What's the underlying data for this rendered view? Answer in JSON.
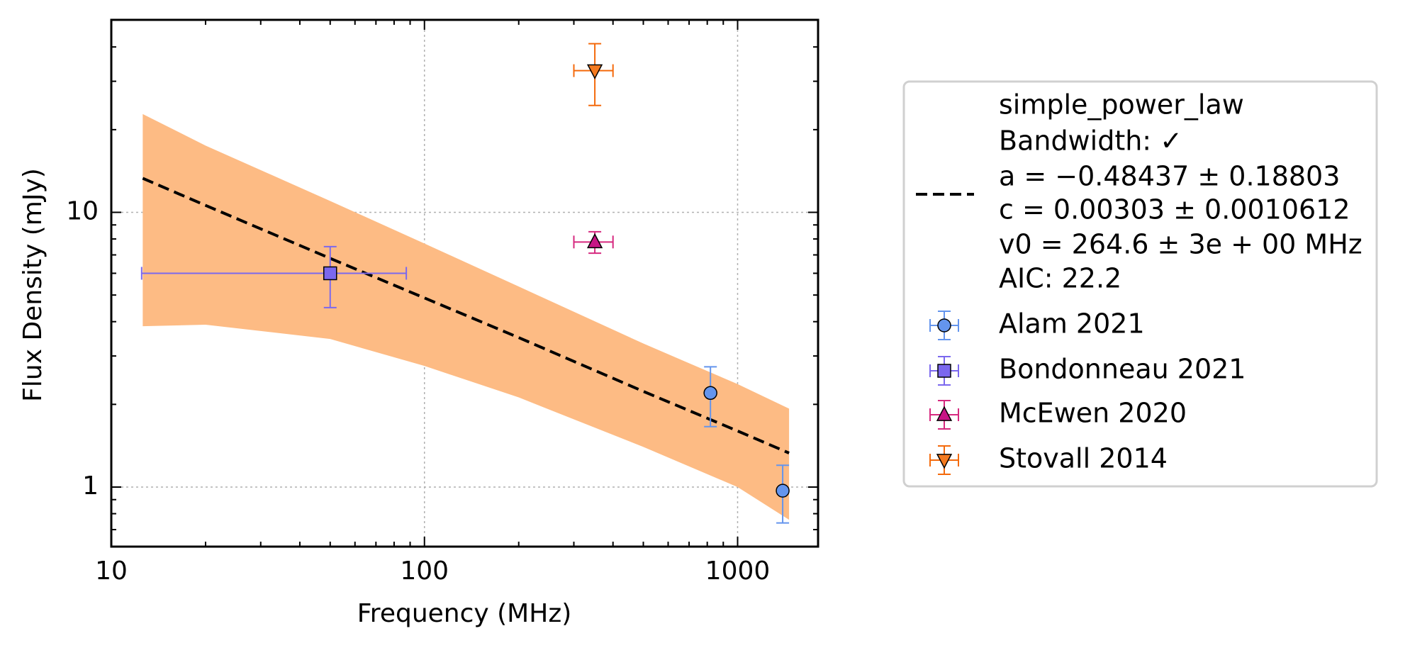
{
  "chart_data": {
    "type": "scatter",
    "xlabel": "Frequency (MHz)",
    "ylabel": "Flux Density (mJy)",
    "xscale": "log",
    "yscale": "log",
    "xlim": [
      10,
      1807
    ],
    "ylim": [
      0.607,
      50.2
    ],
    "xticks": [
      10,
      100,
      1000
    ],
    "yticks": [
      1,
      10
    ],
    "xticks_minor": [
      20,
      30,
      40,
      50,
      60,
      70,
      80,
      90,
      200,
      300,
      400,
      500,
      600,
      700,
      800,
      900
    ],
    "yticks_minor": [
      0.7,
      0.8,
      0.9,
      2,
      3,
      4,
      5,
      6,
      7,
      8,
      9,
      20,
      30,
      40
    ],
    "grid": true,
    "legend": "outside right",
    "fit": {
      "label": [
        "simple_power_law",
        "Bandwidth: ✓",
        "a = −0.48437 ± 0.18803",
        "c = 0.00303 ± 0.0010612",
        "v0 = 264.6 ± 3e + 00 MHz",
        "AIC: 22.2"
      ],
      "color": "#000000",
      "band_color": "#fdbb84",
      "x": [
        12.6,
        20,
        50,
        100,
        200,
        500,
        1000,
        1460
      ],
      "y": [
        13.3,
        10.6,
        6.8,
        4.88,
        3.5,
        2.23,
        1.6,
        1.33
      ],
      "band_lower": [
        3.85,
        3.9,
        3.46,
        2.76,
        2.12,
        1.4,
        1.0,
        0.76
      ],
      "band_upper": [
        22.8,
        17.5,
        11.0,
        7.7,
        5.37,
        3.33,
        2.37,
        1.93
      ]
    },
    "series": [
      {
        "name": "Alam 2021",
        "color": "#6495ed",
        "marker_fill": "#6495ed",
        "marker": "circle",
        "x": [
          819,
          1393
        ],
        "values": [
          2.2,
          0.97
        ],
        "yerr": [
          0.54,
          0.23
        ]
      },
      {
        "name": "Bondonneau 2021",
        "color": "#7b68ee",
        "marker_fill": "#7b68ee",
        "marker": "square",
        "x": [
          50
        ],
        "values": [
          6.0
        ],
        "yerr": [
          1.5
        ],
        "xerr": [
          37.5
        ]
      },
      {
        "name": "McEwen 2020",
        "color": "#d6297f",
        "marker_fill": "#c71585",
        "marker": "triangle-up",
        "x": [
          350
        ],
        "values": [
          7.8
        ],
        "yerr": [
          0.7
        ],
        "xerr": [
          50
        ]
      },
      {
        "name": "Stovall 2014",
        "color": "#f46a0c",
        "marker_fill": "#f47a1f",
        "marker": "triangle-down",
        "x": [
          350
        ],
        "values": [
          32.8
        ],
        "yerr": [
          8.3
        ],
        "xerr": [
          50
        ]
      }
    ]
  }
}
